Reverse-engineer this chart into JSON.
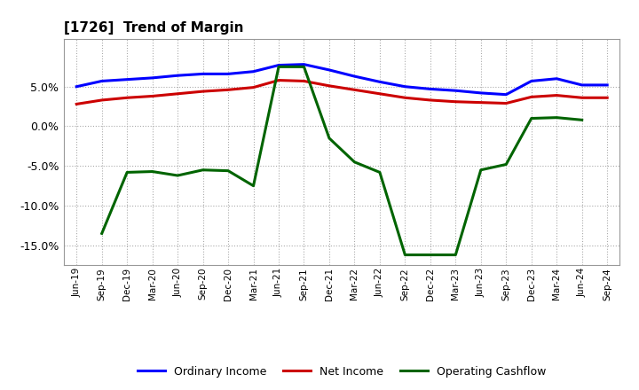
{
  "title": "[1726]  Trend of Margin",
  "x_labels": [
    "Jun-19",
    "Sep-19",
    "Dec-19",
    "Mar-20",
    "Jun-20",
    "Sep-20",
    "Dec-20",
    "Mar-21",
    "Jun-21",
    "Sep-21",
    "Dec-21",
    "Mar-22",
    "Jun-22",
    "Sep-22",
    "Dec-22",
    "Mar-23",
    "Jun-23",
    "Sep-23",
    "Dec-23",
    "Mar-24",
    "Jun-24",
    "Sep-24"
  ],
  "ordinary_income": [
    5.0,
    5.7,
    5.9,
    6.1,
    6.4,
    6.6,
    6.6,
    6.9,
    7.7,
    7.8,
    7.1,
    6.3,
    5.6,
    5.0,
    4.7,
    4.5,
    4.2,
    4.0,
    5.7,
    6.0,
    5.2,
    5.2
  ],
  "net_income": [
    2.8,
    3.3,
    3.6,
    3.8,
    4.1,
    4.4,
    4.6,
    4.9,
    5.8,
    5.7,
    5.1,
    4.6,
    4.1,
    3.6,
    3.3,
    3.1,
    3.0,
    2.9,
    3.7,
    3.9,
    3.6,
    3.6
  ],
  "operating_cashflow": [
    null,
    -13.5,
    -5.8,
    -5.7,
    -6.2,
    -5.5,
    -5.6,
    -7.5,
    7.5,
    7.5,
    -1.5,
    -4.5,
    -5.8,
    -16.2,
    -16.2,
    -16.2,
    -5.5,
    -4.8,
    1.0,
    1.1,
    0.8,
    null
  ],
  "ylim": [
    -17.5,
    11.0
  ],
  "yticks": [
    -15.0,
    -10.0,
    -5.0,
    0.0,
    5.0
  ],
  "colors": {
    "ordinary_income": "#0000FF",
    "net_income": "#CC0000",
    "operating_cashflow": "#006400",
    "background": "#ffffff"
  },
  "legend": {
    "ordinary_income": "Ordinary Income",
    "net_income": "Net Income",
    "operating_cashflow": "Operating Cashflow"
  },
  "figsize": [
    7.2,
    4.4
  ],
  "dpi": 100
}
